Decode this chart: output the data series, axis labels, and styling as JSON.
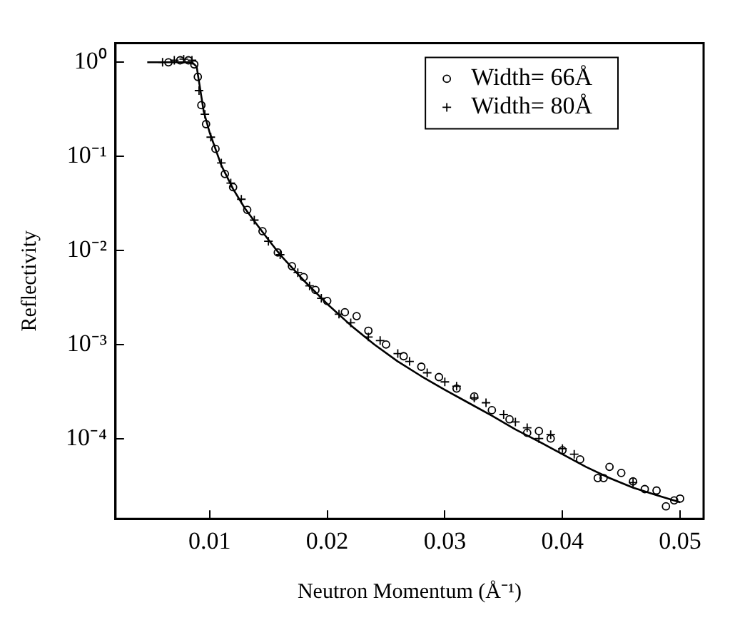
{
  "chart_data": {
    "type": "scatter",
    "xlabel": "Neutron Momentum (Å⁻¹)",
    "ylabel": "Reflectivity",
    "log": "y",
    "xlim": [
      0.002,
      0.052
    ],
    "ylim": [
      1.4e-05,
      1.6
    ],
    "xticks": [
      0.01,
      0.02,
      0.03,
      0.04,
      0.05
    ],
    "yticks": [
      {
        "value": 1,
        "label": "10⁰"
      },
      {
        "value": 0.1,
        "label": "10⁻¹"
      },
      {
        "value": 0.01,
        "label": "10⁻²"
      },
      {
        "value": 0.001,
        "label": "10⁻³"
      },
      {
        "value": 0.0001,
        "label": "10⁻⁴"
      }
    ],
    "legend": "top right",
    "grid": false,
    "series": [
      {
        "name": "Width= 66Å",
        "color": "#000000",
        "marker": "circle",
        "x": [
          0.0065,
          0.0075,
          0.0082,
          0.0087,
          0.009,
          0.0093,
          0.0097,
          0.0105,
          0.0113,
          0.012,
          0.0132,
          0.0145,
          0.0158,
          0.017,
          0.018,
          0.019,
          0.02,
          0.0215,
          0.0225,
          0.0235,
          0.025,
          0.0265,
          0.028,
          0.0295,
          0.031,
          0.0325,
          0.034,
          0.0355,
          0.037,
          0.038,
          0.039,
          0.04,
          0.0415,
          0.043,
          0.0435,
          0.044,
          0.045,
          0.046,
          0.047,
          0.048,
          0.0488,
          0.0495,
          0.05
        ],
        "values": [
          1.0,
          1.05,
          1.05,
          0.95,
          0.7,
          0.35,
          0.22,
          0.12,
          0.065,
          0.047,
          0.027,
          0.016,
          0.0095,
          0.0068,
          0.0052,
          0.0038,
          0.0029,
          0.0022,
          0.002,
          0.0014,
          0.001,
          0.00075,
          0.00058,
          0.00045,
          0.00034,
          0.00028,
          0.0002,
          0.00016,
          0.000115,
          0.00012,
          0.0001,
          7.5e-05,
          6e-05,
          3.8e-05,
          3.8e-05,
          5e-05,
          4.3e-05,
          3.5e-05,
          2.9e-05,
          2.8e-05,
          1.9e-05,
          2.2e-05,
          2.3e-05
        ]
      },
      {
        "name": "Width= 80Å",
        "color": "#000000",
        "marker": "cross",
        "x": [
          0.006,
          0.007,
          0.0078,
          0.0085,
          0.0091,
          0.0096,
          0.0101,
          0.011,
          0.0118,
          0.0127,
          0.0138,
          0.015,
          0.016,
          0.0175,
          0.0185,
          0.0195,
          0.021,
          0.022,
          0.0235,
          0.0245,
          0.026,
          0.027,
          0.0285,
          0.03,
          0.031,
          0.0325,
          0.0335,
          0.035,
          0.036,
          0.037,
          0.038,
          0.039,
          0.04,
          0.041,
          0.046
        ],
        "values": [
          1.0,
          1.05,
          1.08,
          1.05,
          0.5,
          0.28,
          0.16,
          0.085,
          0.052,
          0.035,
          0.021,
          0.0125,
          0.009,
          0.0058,
          0.0042,
          0.0031,
          0.0021,
          0.0017,
          0.0012,
          0.0011,
          0.0008,
          0.00066,
          0.0005,
          0.0004,
          0.00036,
          0.00027,
          0.00024,
          0.00018,
          0.00015,
          0.00013,
          0.0001,
          0.00011,
          7.8e-05,
          6.8e-05,
          3.4e-05
        ]
      },
      {
        "type": "line",
        "color": "#000000",
        "marker": "none",
        "line_style": "solid",
        "x": [
          0.0047,
          0.0085,
          0.0089,
          0.0095,
          0.01,
          0.011,
          0.012,
          0.013,
          0.014,
          0.015,
          0.016,
          0.018,
          0.02,
          0.022,
          0.024,
          0.026,
          0.028,
          0.03,
          0.032,
          0.034,
          0.036,
          0.038,
          0.04,
          0.042,
          0.044,
          0.046,
          0.048,
          0.05
        ],
        "values": [
          1.0,
          1.0,
          0.9,
          0.3,
          0.18,
          0.08,
          0.045,
          0.028,
          0.019,
          0.013,
          0.009,
          0.0048,
          0.0027,
          0.0016,
          0.001,
          0.00066,
          0.00046,
          0.00033,
          0.00024,
          0.000175,
          0.000125,
          9.3e-05,
          6.8e-05,
          5e-05,
          3.8e-05,
          3e-05,
          2.5e-05,
          2.1e-05
        ]
      }
    ]
  }
}
